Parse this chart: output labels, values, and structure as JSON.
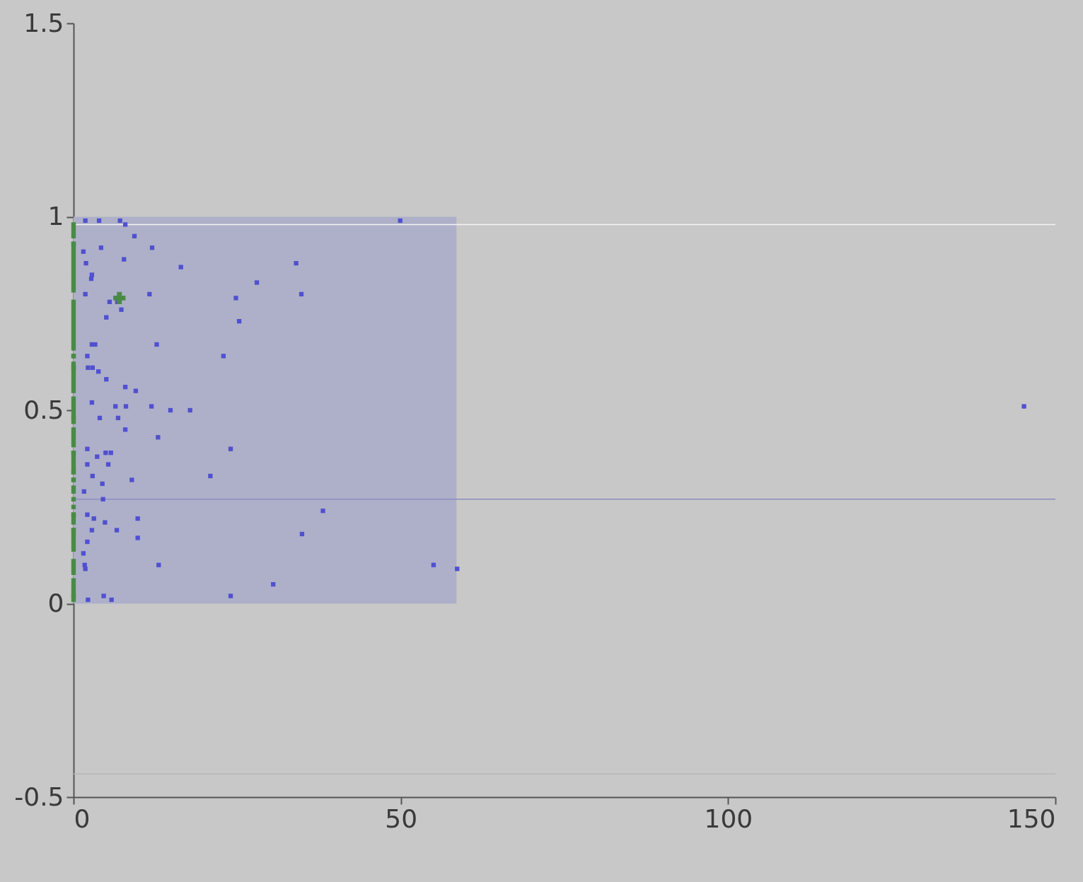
{
  "chart_data": {
    "type": "scatter",
    "xlim": [
      0,
      150
    ],
    "ylim": [
      -0.5,
      1.5
    ],
    "xticks": [
      0,
      50,
      100,
      150
    ],
    "yticks": [
      -0.5,
      0,
      0.5,
      1,
      1.5
    ],
    "grid": false,
    "ref_lines": [
      {
        "axis": "y",
        "value": 0.98,
        "color": "#f4f4f4"
      },
      {
        "axis": "y",
        "value": 0.27,
        "color": "#8c8cc0"
      },
      {
        "axis": "y",
        "value": -0.44,
        "color": "#b6b6b6"
      }
    ],
    "series": [
      {
        "type": "area",
        "color": "#aeb0c9",
        "x": [
          0,
          58.5
        ],
        "values": [
          1,
          1
        ]
      },
      {
        "type": "scatter",
        "marker": "square",
        "color": "#5050d0",
        "x": [
          1.8,
          3.9,
          7.1,
          7.9,
          9.3,
          12.0,
          4.2,
          16.4,
          1.5,
          1.9,
          2.7,
          7.7,
          11.6,
          1.8,
          2.8,
          6.7,
          5.5,
          7.3,
          5.0,
          12.7,
          2.8,
          3.3,
          2.1,
          2.2,
          2.9,
          3.8,
          5.0,
          7.9,
          9.5,
          2.8,
          6.4,
          8.0,
          11.9,
          14.8,
          17.8,
          4.0,
          6.8,
          7.9,
          12.9,
          2.1,
          3.6,
          4.9,
          5.3,
          5.7,
          2.1,
          2.9,
          8.9,
          4.4,
          1.6,
          4.5,
          2.1,
          3.1,
          4.8,
          2.8,
          6.6,
          9.8,
          9.8,
          2.1,
          1.5,
          1.7,
          13.0,
          1.8,
          4.6,
          5.8,
          2.2,
          49.9,
          34.0,
          28.0,
          24.8,
          34.8,
          25.3,
          22.9,
          24.0,
          20.9,
          38.1,
          34.9,
          55.0,
          58.6,
          30.5,
          24.0,
          145.2
        ],
        "values": [
          0.99,
          0.99,
          0.99,
          0.98,
          0.95,
          0.92,
          0.92,
          0.87,
          0.91,
          0.88,
          0.84,
          0.89,
          0.8,
          0.8,
          0.85,
          0.78,
          0.78,
          0.76,
          0.74,
          0.67,
          0.67,
          0.67,
          0.64,
          0.61,
          0.61,
          0.6,
          0.58,
          0.56,
          0.55,
          0.52,
          0.51,
          0.51,
          0.51,
          0.5,
          0.5,
          0.48,
          0.48,
          0.45,
          0.43,
          0.4,
          0.38,
          0.39,
          0.36,
          0.39,
          0.36,
          0.33,
          0.32,
          0.31,
          0.29,
          0.27,
          0.23,
          0.22,
          0.21,
          0.19,
          0.19,
          0.22,
          0.17,
          0.16,
          0.13,
          0.1,
          0.1,
          0.09,
          0.02,
          0.01,
          0.01,
          0.99,
          0.88,
          0.83,
          0.79,
          0.8,
          0.73,
          0.64,
          0.4,
          0.33,
          0.24,
          0.18,
          0.1,
          0.09,
          0.05,
          0.02,
          0.51
        ]
      },
      {
        "type": "scatter",
        "marker": "square",
        "color": "#4a8a48",
        "x": [
          0,
          0,
          0,
          0,
          0,
          0,
          0,
          0,
          0,
          0,
          0,
          0,
          0,
          0,
          0,
          0,
          0,
          0,
          0,
          0,
          0,
          0,
          0,
          0,
          0,
          0,
          0,
          0,
          0,
          0,
          0,
          0,
          0,
          0,
          0,
          0,
          0,
          0,
          0,
          0,
          0,
          0,
          0,
          0,
          0,
          0,
          0,
          0,
          0,
          0,
          0,
          0,
          0,
          0,
          0,
          0,
          0,
          0,
          0,
          0,
          0,
          0,
          0,
          0,
          0,
          0,
          0,
          0,
          0,
          0,
          0,
          0,
          0,
          0,
          0,
          0,
          0,
          0,
          0,
          0,
          0,
          0,
          0,
          0,
          0,
          0,
          0,
          0,
          0,
          0,
          0
        ],
        "values": [
          0.98,
          0.97,
          0.96,
          0.95,
          0.93,
          0.93,
          0.92,
          0.91,
          0.9,
          0.89,
          0.88,
          0.87,
          0.86,
          0.85,
          0.84,
          0.83,
          0.82,
          0.81,
          0.78,
          0.77,
          0.76,
          0.75,
          0.74,
          0.73,
          0.72,
          0.71,
          0.7,
          0.69,
          0.68,
          0.67,
          0.66,
          0.64,
          0.64,
          0.62,
          0.61,
          0.61,
          0.6,
          0.59,
          0.58,
          0.57,
          0.56,
          0.55,
          0.53,
          0.52,
          0.51,
          0.5,
          0.49,
          0.48,
          0.48,
          0.47,
          0.45,
          0.44,
          0.43,
          0.42,
          0.41,
          0.39,
          0.39,
          0.38,
          0.37,
          0.36,
          0.35,
          0.34,
          0.34,
          0.32,
          0.32,
          0.3,
          0.29,
          0.27,
          0.25,
          0.23,
          0.23,
          0.22,
          0.21,
          0.19,
          0.19,
          0.18,
          0.17,
          0.16,
          0.15,
          0.14,
          0.11,
          0.1,
          0.09,
          0.08,
          0.06,
          0.05,
          0.04,
          0.03,
          0.02,
          0.02,
          0.01
        ]
      },
      {
        "type": "scatter",
        "marker": "cross",
        "color": "#4a8a48",
        "x": [
          7.0
        ],
        "values": [
          0.79
        ]
      }
    ]
  }
}
